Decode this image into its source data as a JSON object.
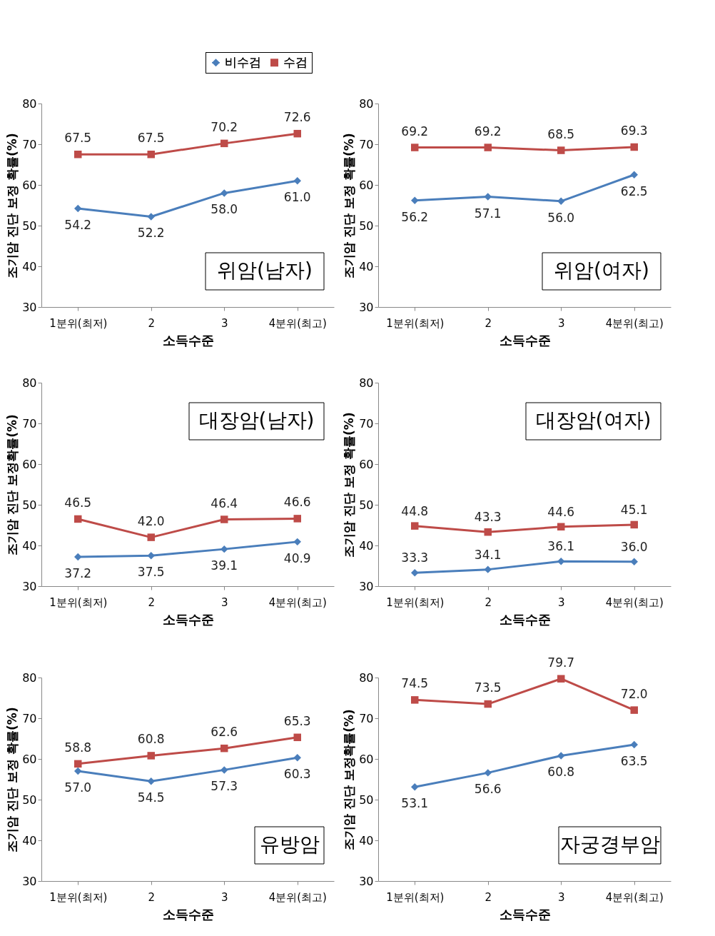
{
  "chart_data": [
    {
      "type": "line",
      "title": "위암(남자)",
      "xlabel": "소득수준",
      "ylabel": "조기암 진단 보정 확률(%)",
      "categories": [
        "1분위(최저)",
        "2",
        "3",
        "4분위(최고)"
      ],
      "ylim": [
        30,
        80
      ],
      "yticks": [
        30,
        40,
        50,
        60,
        70,
        80
      ],
      "legend": "top",
      "series": [
        {
          "name": "비수검",
          "color": "#4a7ebb",
          "marker": "diamond",
          "values": [
            54.2,
            52.2,
            58.0,
            61.0
          ],
          "value_labels": [
            "54.2",
            "52.2",
            "58.0",
            "61.0"
          ]
        },
        {
          "name": "수검",
          "color": "#be4b48",
          "marker": "square",
          "values": [
            67.5,
            67.5,
            70.2,
            72.6
          ],
          "value_labels": [
            "67.5",
            "67.5",
            "70.2",
            "72.6"
          ]
        }
      ]
    },
    {
      "type": "line",
      "title": "위암(여자)",
      "xlabel": "소득수준",
      "ylabel": "조기암 진단 보정 확률(%)",
      "categories": [
        "1분위(최저)",
        "2",
        "3",
        "4분위(최고)"
      ],
      "ylim": [
        30,
        80
      ],
      "yticks": [
        30,
        40,
        50,
        60,
        70,
        80
      ],
      "series": [
        {
          "name": "비수검",
          "color": "#4a7ebb",
          "marker": "diamond",
          "values": [
            56.2,
            57.1,
            56.0,
            62.5
          ],
          "value_labels": [
            "56.2",
            "57.1",
            "56.0",
            "62.5"
          ]
        },
        {
          "name": "수검",
          "color": "#be4b48",
          "marker": "square",
          "values": [
            69.2,
            69.2,
            68.5,
            69.3
          ],
          "value_labels": [
            "69.2",
            "69.2",
            "68.5",
            "69.3"
          ]
        }
      ]
    },
    {
      "type": "line",
      "title": "대장암(남자)",
      "xlabel": "소득수준",
      "ylabel": "조기암 진단 보정확률(%)",
      "categories": [
        "1분위(최저)",
        "2",
        "3",
        "4분위(최고)"
      ],
      "ylim": [
        30,
        80
      ],
      "yticks": [
        30,
        40,
        50,
        60,
        70,
        80
      ],
      "series": [
        {
          "name": "비수검",
          "color": "#4a7ebb",
          "marker": "diamond",
          "values": [
            37.2,
            37.5,
            39.1,
            40.9
          ],
          "value_labels": [
            "37.2",
            "37.5",
            "39.1",
            "40.9"
          ]
        },
        {
          "name": "수검",
          "color": "#be4b48",
          "marker": "square",
          "values": [
            46.5,
            42.0,
            46.4,
            46.6
          ],
          "value_labels": [
            "46.5",
            "42.0",
            "46.4",
            "46.6"
          ]
        }
      ]
    },
    {
      "type": "line",
      "title": "대장암(여자)",
      "xlabel": "소득수준",
      "ylabel": "조기암 진단 보정 확률(%)",
      "categories": [
        "1분위(최저)",
        "2",
        "3",
        "4분위(최고)"
      ],
      "ylim": [
        30,
        80
      ],
      "yticks": [
        30,
        40,
        50,
        60,
        70,
        80
      ],
      "series": [
        {
          "name": "비수검",
          "color": "#4a7ebb",
          "marker": "diamond",
          "values": [
            33.3,
            34.1,
            36.1,
            36.0
          ],
          "value_labels": [
            "33.3",
            "34.1",
            "36.1",
            "36.0"
          ]
        },
        {
          "name": "수검",
          "color": "#be4b48",
          "marker": "square",
          "values": [
            44.8,
            43.3,
            44.6,
            45.1
          ],
          "value_labels": [
            "44.8",
            "43.3",
            "44.6",
            "45.1"
          ]
        }
      ]
    },
    {
      "type": "line",
      "title": "유방암",
      "xlabel": "소득수준",
      "ylabel": "조기암 진단 보정 확률(%)",
      "categories": [
        "1분위(최저)",
        "2",
        "3",
        "4분위(최고)"
      ],
      "ylim": [
        30,
        80
      ],
      "yticks": [
        30,
        40,
        50,
        60,
        70,
        80
      ],
      "series": [
        {
          "name": "비수검",
          "color": "#4a7ebb",
          "marker": "diamond",
          "values": [
            57.0,
            54.5,
            57.3,
            60.3
          ],
          "value_labels": [
            "57.0",
            "54.5",
            "57.3",
            "60.3"
          ]
        },
        {
          "name": "수검",
          "color": "#be4b48",
          "marker": "square",
          "values": [
            58.8,
            60.8,
            62.6,
            65.3
          ],
          "value_labels": [
            "58.8",
            "60.8",
            "62.6",
            "65.3"
          ]
        }
      ]
    },
    {
      "type": "line",
      "title": "자궁경부암",
      "xlabel": "소득수준",
      "ylabel": "조기암 진단 보정확률(%)",
      "categories": [
        "1분위(최저)",
        "2",
        "3",
        "4분위(최고)"
      ],
      "ylim": [
        30,
        80
      ],
      "yticks": [
        30,
        40,
        50,
        60,
        70,
        80
      ],
      "series": [
        {
          "name": "비수검",
          "color": "#4a7ebb",
          "marker": "diamond",
          "values": [
            53.1,
            56.6,
            60.8,
            63.5
          ],
          "value_labels": [
            "53.1",
            "56.6",
            "60.8",
            "63.5"
          ]
        },
        {
          "name": "수검",
          "color": "#be4b48",
          "marker": "square",
          "values": [
            74.5,
            73.5,
            79.7,
            72.0
          ],
          "value_labels": [
            "74.5",
            "73.5",
            "79.7",
            "72.0"
          ]
        }
      ]
    }
  ]
}
